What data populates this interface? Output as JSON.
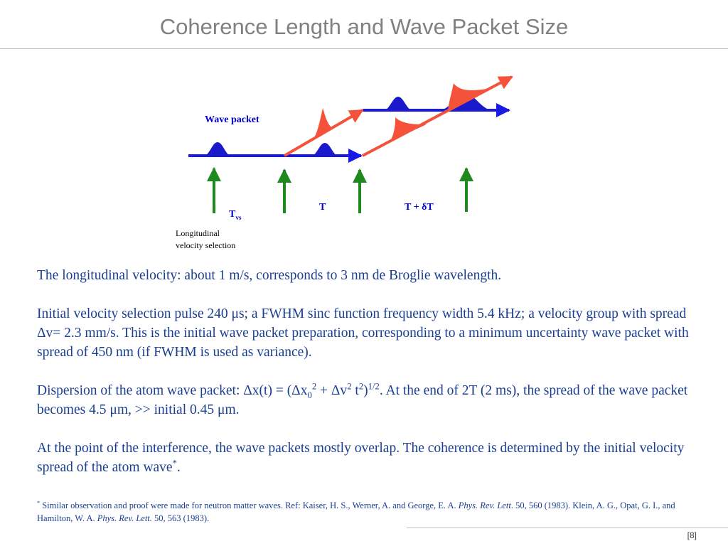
{
  "title": "Coherence Length and Wave Packet Size",
  "diagram": {
    "wave_packet_label": "Wave packet",
    "tvs_main": "T",
    "tvs_sub": "vs",
    "t_label": "T",
    "t_delta_label": "T + δT",
    "longitudinal_line1": "Longitudinal",
    "longitudinal_line2": "velocity selection",
    "colors": {
      "blue": "#1a1ae6",
      "red": "#f4523a",
      "green": "#1e8a1e",
      "packet_blue": "#1a1acc"
    }
  },
  "paragraphs": {
    "p1": "The longitudinal velocity: about 1 m/s, corresponds to 3 nm de Broglie wavelength.",
    "p2a": "Initial velocity selection pulse  240 ",
    "p2_mu": "μ",
    "p2b": "s; a FWHM sinc function frequency width 5.4 kHz; a velocity group with spread ",
    "p2_delta": "Δ",
    "p2c": "v= 2.3 mm/s. This is the initial wave packet preparation, corresponding to a minimum uncertainty wave packet with spread of 450 nm (if FWHM is used as variance).",
    "p3a": "Dispersion of the atom wave packet: ",
    "p3_dx": "Δx(t) = (Δx",
    "p3_sub0": "0",
    "p3_sup2a": "2",
    "p3_plus": " + Δv",
    "p3_sup2b": "2",
    "p3_t": " t",
    "p3_sup2c": "2",
    "p3_close": ")",
    "p3_sup_half": "1/2",
    "p3b": ". At the end of 2T (2 ms), the spread of the wave packet becomes 4.5 ",
    "p3_mu1": "μ",
    "p3c": "m, >> initial 0.45 ",
    "p3_mu2": "μ",
    "p3d": "m.",
    "p4a": "At the point of the interference, the wave packets mostly overlap. The coherence is determined by the initial velocity spread of the atom wave",
    "p4_star": "*",
    "p4b": "."
  },
  "footnote": {
    "star": "*",
    "text1": " Similar observation and proof were made for neutron matter waves. Ref: Kaiser, H. S., Werner, A. and George, E. A. ",
    "journal1": "Phys. Rev. Lett",
    "text2": ". 50, 560 (1983). Klein, A. G., Opat, G. I., and Hamilton, W. A. ",
    "journal2": "Phys. Rev. Lett.",
    "text3": " 50, 563 (1983)."
  },
  "page_number": "[8]"
}
